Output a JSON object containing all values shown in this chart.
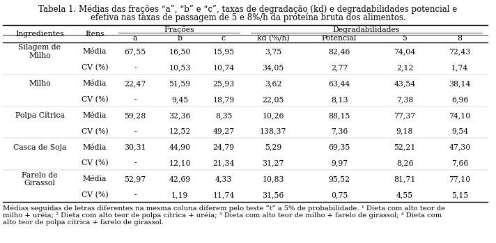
{
  "title_line1": "Tabela 1. Médias das frações “a”, “b” e “c”, taxas de degradação (kd) e degradabilidades potencial e",
  "title_line2": "efetiva nas taxas de passagem de 5 e 8%/h da proteína bruta dos alimentos.",
  "col_group1_label": "Frações",
  "col_group2_label": "Degradabilidades",
  "col_header1": "Ingredientes",
  "col_header2": "Itens",
  "sub_headers": [
    "a",
    "b",
    "c",
    "kd (%/h)",
    "Potencial",
    "5",
    "8"
  ],
  "rows": [
    [
      "Silagem de\nMilho",
      "Média",
      "67,55",
      "16,50",
      "15,95",
      "3,75",
      "82,46",
      "74,04",
      "72,43"
    ],
    [
      "",
      "CV (%)",
      "-",
      "10,53",
      "10,74",
      "34,05",
      "2,77",
      "2,12",
      "1,74"
    ],
    [
      "Milho",
      "Média",
      "22,47",
      "51,59",
      "25,93",
      "3,62",
      "63,44",
      "43,54",
      "38,14"
    ],
    [
      "",
      "CV (%)",
      "-",
      "9,45",
      "18,79",
      "22,05",
      "8,13",
      "7,38",
      "6,96"
    ],
    [
      "Polpa Cítrica",
      "Média",
      "59,28",
      "32,36",
      "8,35",
      "10,26",
      "88,15",
      "77,37",
      "74,10"
    ],
    [
      "",
      "CV (%)",
      "-",
      "12,52",
      "49,27",
      "138,37",
      "7,36",
      "9,18",
      "9,54"
    ],
    [
      "Casca de Soja",
      "Média",
      "30,31",
      "44,90",
      "24,79",
      "5,29",
      "69,35",
      "52,21",
      "47,30"
    ],
    [
      "",
      "CV (%)",
      "-",
      "12,10",
      "21,34",
      "31,27",
      "9,97",
      "8,26",
      "7,66"
    ],
    [
      "Farelo de\nGirassol",
      "Média",
      "52,97",
      "42,69",
      "4,33",
      "10,83",
      "95,52",
      "81,71",
      "77,10"
    ],
    [
      "",
      "CV (%)",
      "-",
      "1,19",
      "11,74",
      "31,56",
      "0,75",
      "4,55",
      "5,15"
    ]
  ],
  "footnote_lines": [
    "Médias seguidas de letras diferentes na mesma coluna diferem pelo teste “t” a 5% de probabilidade. ¹ Dieta com alto teor de",
    "milho + uréia; ² Dieta com alto teor de polpa cítrica + uréia; ³ Dieta com alto teor de milho + farelo de girassol; ⁴ Dieta com",
    "alto teor de polpa cítrica + farelo de girassol."
  ],
  "bg_color": "#ffffff",
  "text_color": "#000000",
  "fs_title": 8.5,
  "fs_table": 7.8,
  "fs_footnote": 7.2
}
